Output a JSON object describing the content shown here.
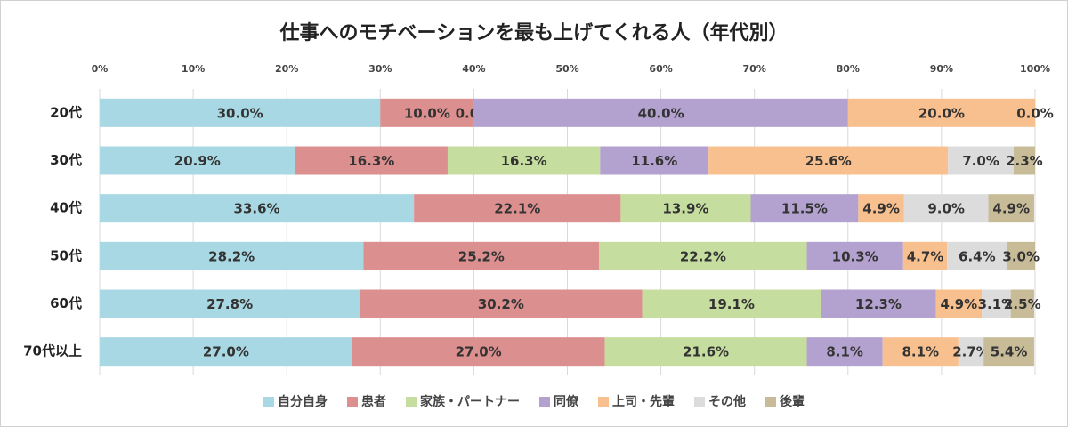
{
  "chart_data": {
    "type": "stacked-bar-horizontal",
    "title": "仕事へのモチベーションを最も上げてくれる人（年代別）",
    "categories": [
      "20代",
      "30代",
      "40代",
      "50代",
      "60代",
      "70代以上"
    ],
    "xlim": [
      0,
      100
    ],
    "xticks": [
      {
        "value": 0,
        "label": "0%"
      },
      {
        "value": 10,
        "label": "10%"
      },
      {
        "value": 20,
        "label": "20%"
      },
      {
        "value": 30,
        "label": "30%"
      },
      {
        "value": 40,
        "label": "40%"
      },
      {
        "value": 50,
        "label": "50%"
      },
      {
        "value": 60,
        "label": "60%"
      },
      {
        "value": 70,
        "label": "70%"
      },
      {
        "value": 80,
        "label": "80%"
      },
      {
        "value": 90,
        "label": "90%"
      },
      {
        "value": 100,
        "label": "100%"
      }
    ],
    "grid": true,
    "series": [
      {
        "name": "自分自身",
        "color": "#a8d8e3",
        "values": [
          30.0,
          20.9,
          33.6,
          28.2,
          27.8,
          27.0
        ],
        "value_labels": [
          "30.0%",
          "20.9%",
          "33.6%",
          "28.2%",
          "27.8%",
          "27.0%"
        ]
      },
      {
        "name": "患者",
        "color": "#dc8f8f",
        "values": [
          10.0,
          16.3,
          22.1,
          25.2,
          30.2,
          27.0
        ],
        "value_labels": [
          "10.0%",
          "16.3%",
          "22.1%",
          "25.2%",
          "30.2%",
          "27.0%"
        ]
      },
      {
        "name": "家族・パートナー",
        "color": "#c5dd9e",
        "values": [
          0.0,
          16.3,
          13.9,
          22.2,
          19.1,
          21.6
        ],
        "value_labels": [
          "0.0%",
          "16.3%",
          "13.9%",
          "22.2%",
          "19.1%",
          "21.6%"
        ]
      },
      {
        "name": "同僚",
        "color": "#b3a2cf",
        "values": [
          40.0,
          11.6,
          11.5,
          10.3,
          12.3,
          8.1
        ],
        "value_labels": [
          "40.0%",
          "11.6%",
          "11.5%",
          "10.3%",
          "12.3%",
          "8.1%"
        ]
      },
      {
        "name": "上司・先輩",
        "color": "#f9c08f",
        "values": [
          20.0,
          25.6,
          4.9,
          4.7,
          4.9,
          8.1
        ],
        "value_labels": [
          "20.0%",
          "25.6%",
          "4.9%",
          "4.7%",
          "4.9%",
          "8.1%"
        ]
      },
      {
        "name": "その他",
        "color": "#dcdcdc",
        "values": [
          0.0,
          7.0,
          9.0,
          6.4,
          3.1,
          2.7
        ],
        "value_labels": [
          null,
          "7.0%",
          "9.0%",
          "6.4%",
          "3.1%",
          "2.7%"
        ]
      },
      {
        "name": "後輩",
        "color": "#c8bc98",
        "values": [
          0.0,
          2.3,
          4.9,
          3.0,
          2.5,
          5.4
        ],
        "value_labels": [
          "0.0%",
          "2.3%",
          "4.9%",
          "3.0%",
          "2.5%",
          "5.4%"
        ]
      }
    ]
  }
}
